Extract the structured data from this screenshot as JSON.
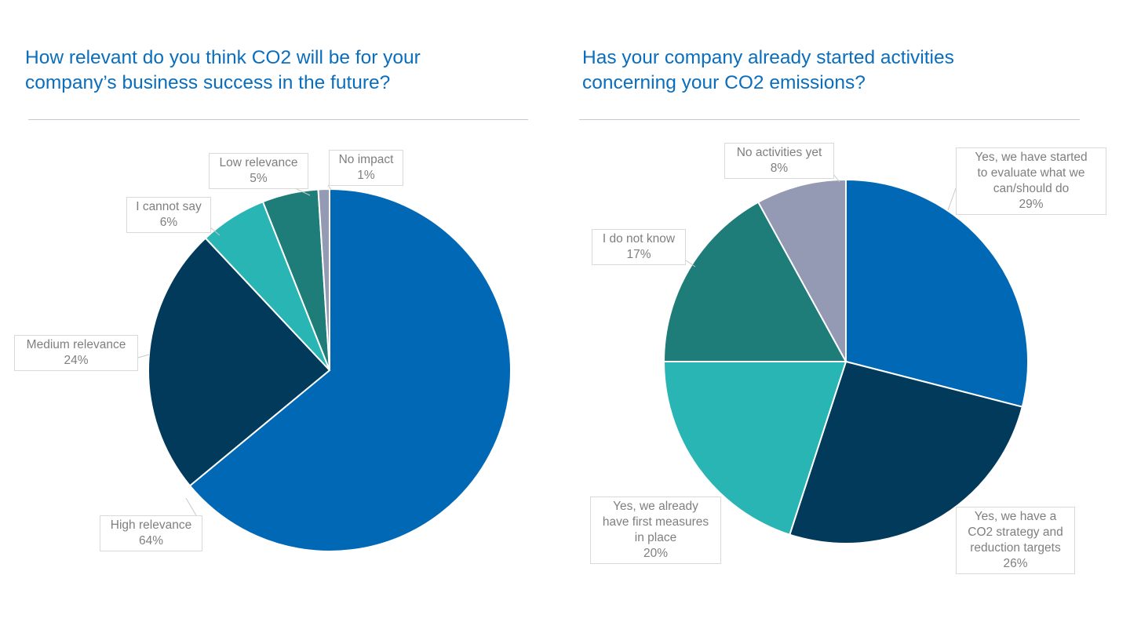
{
  "chart_data": [
    {
      "type": "pie",
      "title": "How relevant do you think CO2 will be for your company’s business success in the future?",
      "title_lines": [
        "How relevant do you think CO2 will be for your",
        "company’s business success in the future?"
      ],
      "start": "top",
      "direction": "clockwise",
      "slices": [
        {
          "label": "High relevance",
          "value": 64,
          "display": "64%",
          "color": "#0068b4"
        },
        {
          "label": "Medium relevance",
          "value": 24,
          "display": "24%",
          "color": "#023a5c"
        },
        {
          "label": "I cannot say",
          "value": 6,
          "display": "6%",
          "color": "#28b5b4"
        },
        {
          "label": "Low relevance",
          "value": 5,
          "display": "5%",
          "color": "#1e7c79"
        },
        {
          "label": "No impact",
          "value": 1,
          "display": "1%",
          "color": "#9499b4"
        }
      ]
    },
    {
      "type": "pie",
      "title": "Has your company already started activities concerning your CO2 emissions?",
      "title_lines": [
        "Has your company already started activities",
        "concerning your CO2 emissions?"
      ],
      "start": "top",
      "direction": "clockwise",
      "slices": [
        {
          "label": "Yes, we have started to evaluate what we can/should do",
          "label_lines": [
            "Yes, we have started",
            "to evaluate what we",
            "can/should do"
          ],
          "value": 29,
          "display": "29%",
          "color": "#0068b4"
        },
        {
          "label": "Yes, we have a CO2 strategy and reduction targets",
          "label_lines": [
            "Yes, we have a",
            "CO2 strategy and",
            "reduction targets"
          ],
          "value": 26,
          "display": "26%",
          "color": "#023a5c"
        },
        {
          "label": "Yes, we already have first measures in place",
          "label_lines": [
            "Yes, we already",
            "have first measures",
            "in place"
          ],
          "value": 20,
          "display": "20%",
          "color": "#28b5b4"
        },
        {
          "label": "I do not know",
          "value": 17,
          "display": "17%",
          "color": "#1e7c79"
        },
        {
          "label": "No activities yet",
          "value": 8,
          "display": "8%",
          "color": "#9499b4"
        }
      ]
    }
  ]
}
